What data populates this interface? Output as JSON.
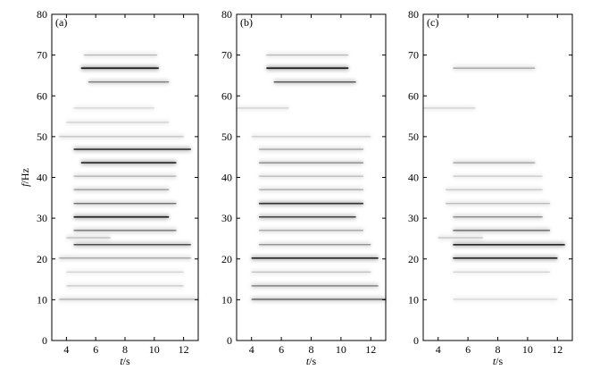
{
  "chart_data": [
    {
      "type": "heatmap",
      "panel_label": "(a)",
      "xlabel_var": "t",
      "xlabel_unit": "/s",
      "ylabel_var": "f",
      "ylabel_unit": "/Hz",
      "xlim": [
        3,
        13
      ],
      "ylim": [
        0,
        80
      ],
      "xticks": [
        4,
        6,
        8,
        10,
        12
      ],
      "yticks": [
        0,
        10,
        20,
        30,
        40,
        50,
        60,
        70,
        80
      ],
      "ridges": [
        {
          "f": 70.0,
          "t0": 5.2,
          "t1": 10.2,
          "intensity": 0.35
        },
        {
          "f": 66.8,
          "t0": 5.0,
          "t1": 10.3,
          "intensity": 0.95
        },
        {
          "f": 63.4,
          "t0": 5.5,
          "t1": 11.0,
          "intensity": 0.6
        },
        {
          "f": 57.0,
          "t0": 4.5,
          "t1": 10.0,
          "intensity": 0.2
        },
        {
          "f": 53.5,
          "t0": 4.0,
          "t1": 11.0,
          "intensity": 0.25
        },
        {
          "f": 50.0,
          "t0": 3.5,
          "t1": 12.0,
          "intensity": 0.3
        },
        {
          "f": 46.9,
          "t0": 4.5,
          "t1": 12.5,
          "intensity": 0.85
        },
        {
          "f": 43.6,
          "t0": 5.0,
          "t1": 11.5,
          "intensity": 0.9
        },
        {
          "f": 40.3,
          "t0": 4.5,
          "t1": 11.5,
          "intensity": 0.4
        },
        {
          "f": 37.0,
          "t0": 4.5,
          "t1": 11.0,
          "intensity": 0.5
        },
        {
          "f": 33.6,
          "t0": 4.5,
          "t1": 11.5,
          "intensity": 0.6
        },
        {
          "f": 30.3,
          "t0": 4.5,
          "t1": 11.0,
          "intensity": 0.9
        },
        {
          "f": 27.0,
          "t0": 4.5,
          "t1": 11.5,
          "intensity": 0.6
        },
        {
          "f": 25.2,
          "t0": 4.0,
          "t1": 7.0,
          "intensity": 0.35
        },
        {
          "f": 23.5,
          "t0": 4.5,
          "t1": 12.5,
          "intensity": 0.75
        },
        {
          "f": 20.2,
          "t0": 3.5,
          "t1": 12.5,
          "intensity": 0.45
        },
        {
          "f": 16.8,
          "t0": 4.0,
          "t1": 12.0,
          "intensity": 0.2
        },
        {
          "f": 13.4,
          "t0": 4.0,
          "t1": 12.0,
          "intensity": 0.25
        },
        {
          "f": 10.1,
          "t0": 3.5,
          "t1": 13.0,
          "intensity": 0.4
        }
      ]
    },
    {
      "type": "heatmap",
      "panel_label": "(b)",
      "xlabel_var": "t",
      "xlabel_unit": "/s",
      "ylabel_var": "",
      "ylabel_unit": "",
      "xlim": [
        3,
        13
      ],
      "ylim": [
        0,
        80
      ],
      "xticks": [
        4,
        6,
        8,
        10,
        12
      ],
      "yticks": [
        0,
        10,
        20,
        30,
        40,
        50,
        60,
        70,
        80
      ],
      "ridges": [
        {
          "f": 70.0,
          "t0": 5.0,
          "t1": 10.5,
          "intensity": 0.35
        },
        {
          "f": 66.8,
          "t0": 5.0,
          "t1": 10.5,
          "intensity": 0.95
        },
        {
          "f": 63.4,
          "t0": 5.5,
          "t1": 11.0,
          "intensity": 0.7
        },
        {
          "f": 57.0,
          "t0": 3.0,
          "t1": 6.5,
          "intensity": 0.25
        },
        {
          "f": 50.0,
          "t0": 4.0,
          "t1": 12.0,
          "intensity": 0.25
        },
        {
          "f": 46.9,
          "t0": 4.5,
          "t1": 11.5,
          "intensity": 0.45
        },
        {
          "f": 43.6,
          "t0": 4.5,
          "t1": 11.5,
          "intensity": 0.55
        },
        {
          "f": 40.3,
          "t0": 4.5,
          "t1": 11.5,
          "intensity": 0.35
        },
        {
          "f": 37.0,
          "t0": 4.5,
          "t1": 11.5,
          "intensity": 0.4
        },
        {
          "f": 33.6,
          "t0": 4.5,
          "t1": 11.5,
          "intensity": 0.85
        },
        {
          "f": 30.3,
          "t0": 4.5,
          "t1": 11.0,
          "intensity": 0.8
        },
        {
          "f": 27.0,
          "t0": 4.5,
          "t1": 11.5,
          "intensity": 0.45
        },
        {
          "f": 23.5,
          "t0": 4.5,
          "t1": 12.0,
          "intensity": 0.5
        },
        {
          "f": 20.2,
          "t0": 4.0,
          "t1": 12.5,
          "intensity": 0.9
        },
        {
          "f": 16.8,
          "t0": 4.0,
          "t1": 12.0,
          "intensity": 0.3
        },
        {
          "f": 13.4,
          "t0": 4.0,
          "t1": 12.5,
          "intensity": 0.6
        },
        {
          "f": 10.1,
          "t0": 4.0,
          "t1": 13.0,
          "intensity": 0.7
        }
      ]
    },
    {
      "type": "heatmap",
      "panel_label": "(c)",
      "xlabel_var": "t",
      "xlabel_unit": "/s",
      "ylabel_var": "",
      "ylabel_unit": "",
      "xlim": [
        3,
        13
      ],
      "ylim": [
        0,
        80
      ],
      "xticks": [
        4,
        6,
        8,
        10,
        12
      ],
      "yticks": [
        0,
        10,
        20,
        30,
        40,
        50,
        60,
        70,
        80
      ],
      "ridges": [
        {
          "f": 66.8,
          "t0": 5.0,
          "t1": 10.5,
          "intensity": 0.45
        },
        {
          "f": 57.0,
          "t0": 3.0,
          "t1": 6.5,
          "intensity": 0.25
        },
        {
          "f": 43.6,
          "t0": 5.0,
          "t1": 10.5,
          "intensity": 0.45
        },
        {
          "f": 40.3,
          "t0": 5.0,
          "t1": 11.0,
          "intensity": 0.25
        },
        {
          "f": 37.0,
          "t0": 4.5,
          "t1": 11.0,
          "intensity": 0.3
        },
        {
          "f": 33.6,
          "t0": 4.5,
          "t1": 11.5,
          "intensity": 0.35
        },
        {
          "f": 30.3,
          "t0": 5.0,
          "t1": 11.0,
          "intensity": 0.55
        },
        {
          "f": 27.0,
          "t0": 5.0,
          "t1": 11.5,
          "intensity": 0.65
        },
        {
          "f": 25.2,
          "t0": 4.0,
          "t1": 7.0,
          "intensity": 0.3
        },
        {
          "f": 23.5,
          "t0": 5.0,
          "t1": 12.5,
          "intensity": 0.9
        },
        {
          "f": 20.2,
          "t0": 5.0,
          "t1": 12.0,
          "intensity": 0.9
        },
        {
          "f": 16.8,
          "t0": 5.0,
          "t1": 11.5,
          "intensity": 0.2
        },
        {
          "f": 10.1,
          "t0": 5.0,
          "t1": 12.0,
          "intensity": 0.2
        }
      ]
    }
  ]
}
